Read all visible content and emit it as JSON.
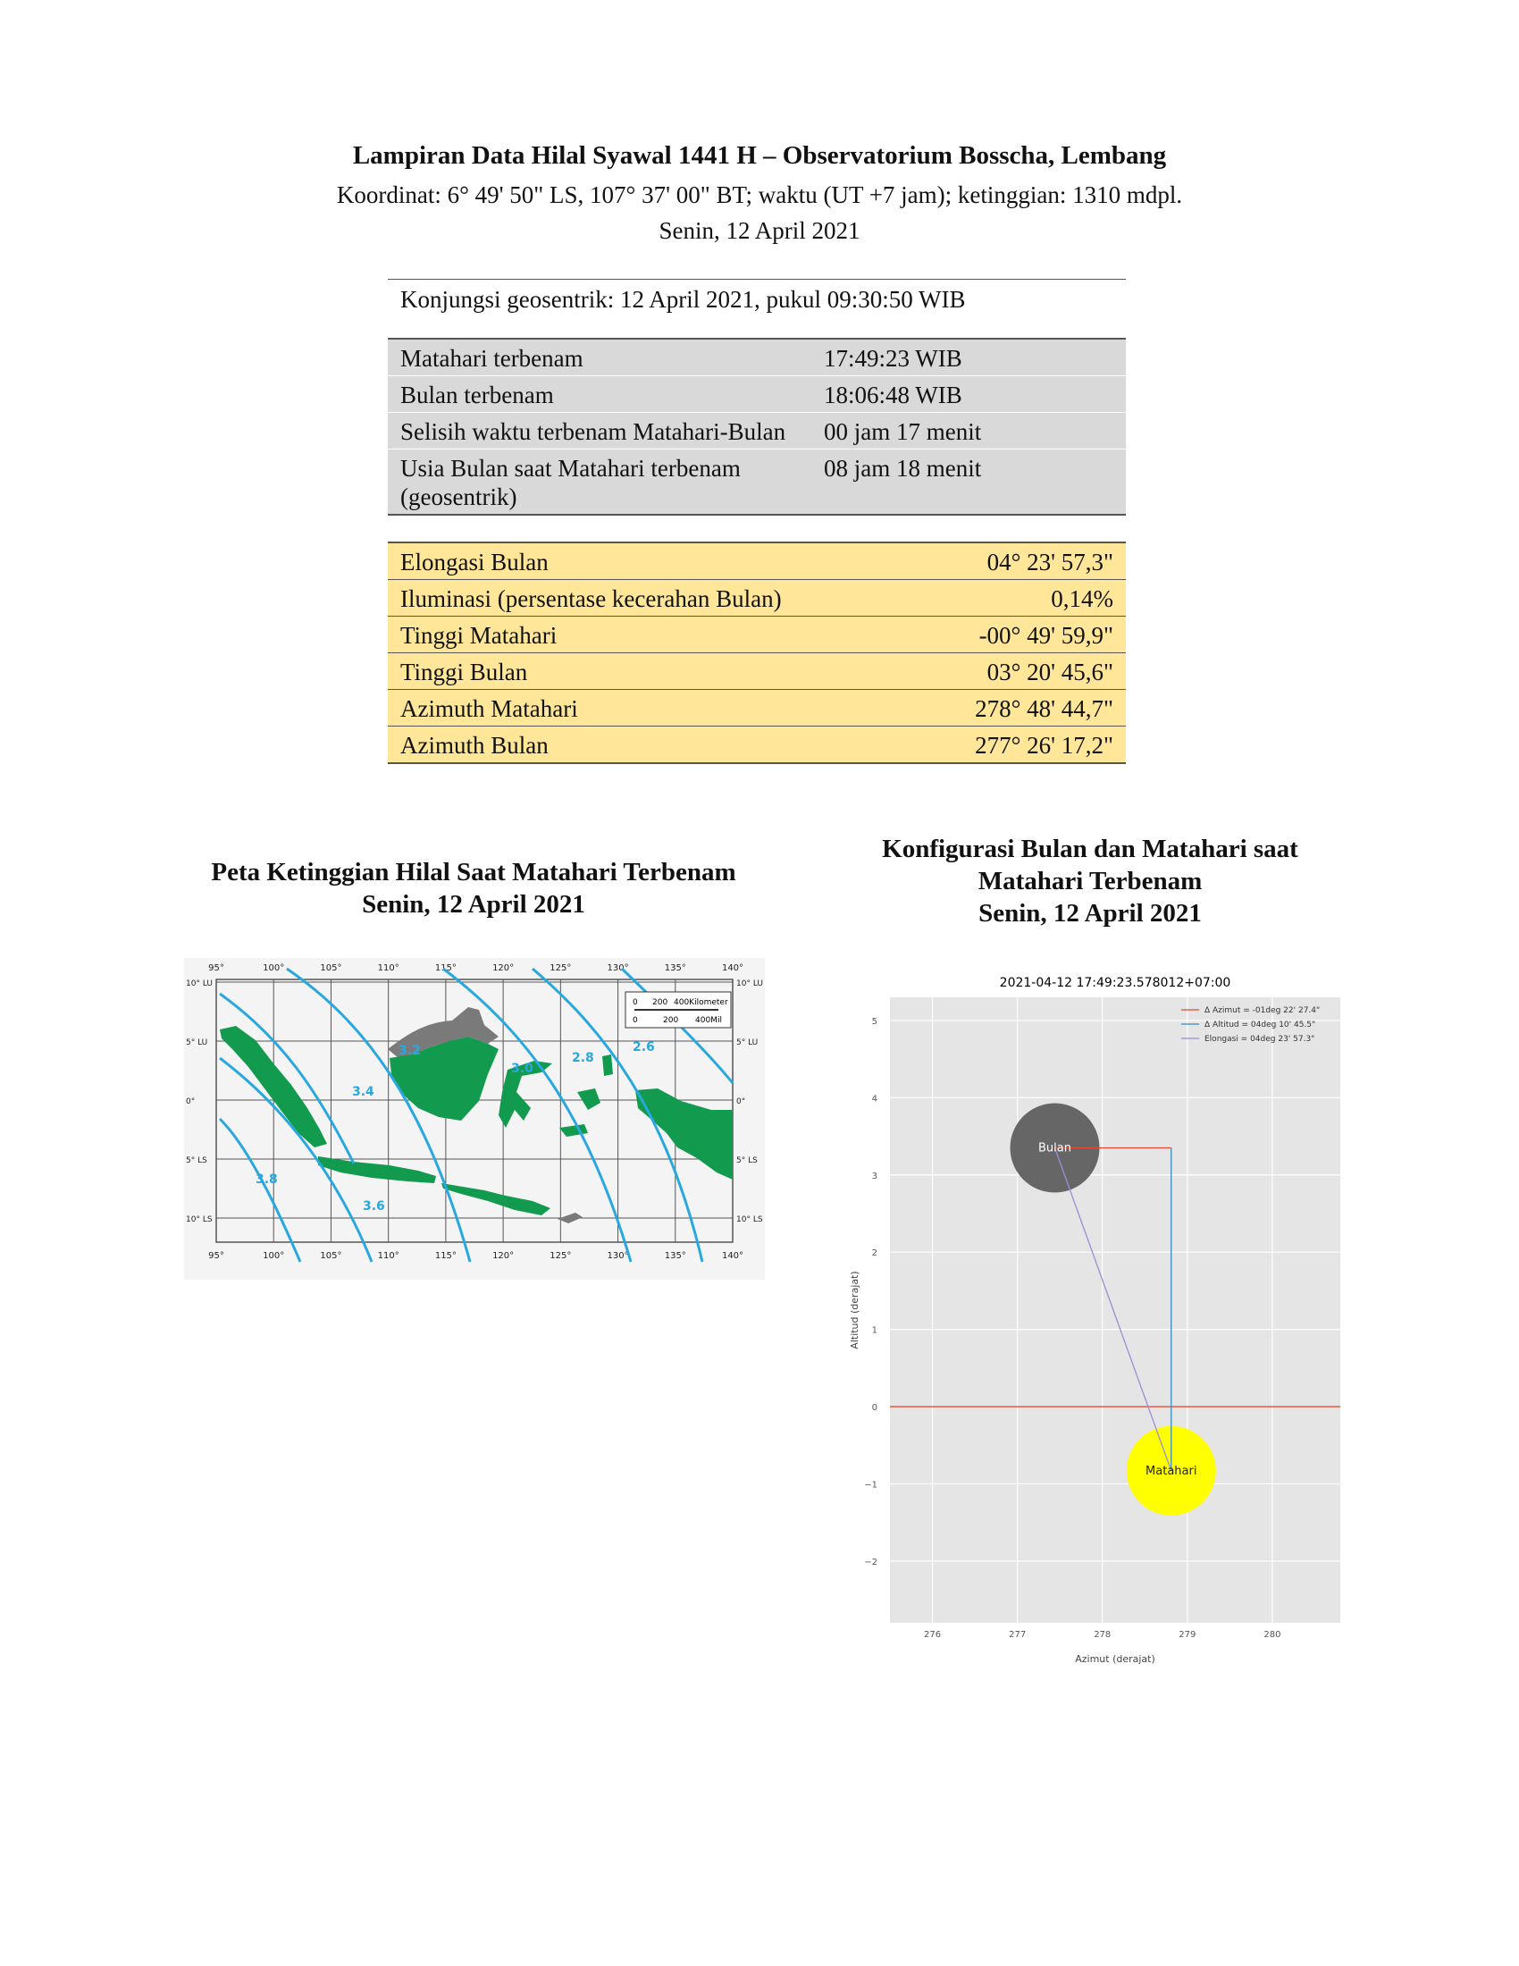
{
  "header": {
    "title": "Lampiran Data Hilal Syawal 1441 H – Observatorium Bosscha, Lembang",
    "coordinates": "Koordinat: 6° 49' 50\" LS, 107° 37' 00\" BT; waktu (UT +7 jam); ketinggian: 1310 mdpl.",
    "date": "Senin, 12 April 2021"
  },
  "conjunction": "Konjungsi geosentrik: 12 April 2021, pukul 09:30:50 WIB",
  "time_table": [
    {
      "label": "Matahari terbenam",
      "value": "17:49:23 WIB"
    },
    {
      "label": "Bulan terbenam",
      "value": "18:06:48 WIB"
    },
    {
      "label": "Selisih waktu terbenam Matahari-Bulan",
      "value": "00 jam 17 menit"
    },
    {
      "label": "Usia Bulan saat Matahari terbenam (geosentrik)",
      "value": "08 jam 18 menit"
    }
  ],
  "position_table": [
    {
      "label": "Elongasi Bulan",
      "value": "04° 23' 57,3\""
    },
    {
      "label": "Iluminasi (persentase kecerahan Bulan)",
      "value": "0,14%"
    },
    {
      "label": "Tinggi Matahari",
      "value": "-00° 49' 59,9\""
    },
    {
      "label": "Tinggi Bulan",
      "value": "03° 20' 45,6\""
    },
    {
      "label": "Azimuth Matahari",
      "value": "278° 48' 44,7\""
    },
    {
      "label": "Azimuth Bulan",
      "value": "277° 26' 17,2\""
    }
  ],
  "map": {
    "caption_line1": "Peta Ketinggian Hilal Saat Matahari Terbenam",
    "caption_line2": "Senin, 12 April 2021",
    "lon_ticks": [
      "95°",
      "100°",
      "105°",
      "110°",
      "115°",
      "120°",
      "125°",
      "130°",
      "135°",
      "140°"
    ],
    "lat_ticks_left": [
      "10° LU",
      "5° LU",
      "0°",
      "5° LS",
      "10° LS"
    ],
    "lat_ticks_right": [
      "10° LU",
      "5° LU",
      "0°",
      "5° LS",
      "10° LS"
    ],
    "contour_labels": [
      "3.2",
      "3.0",
      "2.8",
      "2.6",
      "3.4",
      "3.8",
      "3.6"
    ],
    "scale_labels": [
      "0",
      "200",
      "400Kilometer",
      "0",
      "200",
      "400Mil"
    ],
    "colors": {
      "land": "#129a4e",
      "foreign_land": "#7a7a7a",
      "contour": "#29a8e0",
      "grid": "#555555"
    }
  },
  "config": {
    "caption_line1": "Konfigurasi Bulan dan Matahari saat",
    "caption_line2": "Matahari Terbenam",
    "caption_line3": "Senin, 12 April 2021",
    "chart_title": "2021-04-12 17:49:23.578012+07:00",
    "moon_label": "Bulan",
    "sun_label": "Matahari",
    "colors": {
      "background": "#e5e5e5",
      "moon": "#666666",
      "sun": "#ffff00",
      "azimuth_line": "#e24a33",
      "altitude_line": "#348abd",
      "elongation_line": "#988ed5"
    }
  },
  "chart_data": {
    "type": "scatter",
    "title": "2021-04-12 17:49:23.578012+07:00",
    "xlabel": "Azimut (derajat)",
    "ylabel": "Altitud (derajat)",
    "xlim": [
      275.5,
      280.8
    ],
    "ylim": [
      -2.8,
      5.3
    ],
    "x_ticks": [
      "276",
      "277",
      "278",
      "279",
      "280"
    ],
    "y_ticks": [
      "5",
      "4",
      "3",
      "2",
      "1",
      "0",
      "−1",
      "−2"
    ],
    "grid": true,
    "legend_position": "top-right",
    "legend": [
      "Δ Azimut = -01deg 22' 27.4\"",
      "Δ Altitud = 04deg 10' 45.5\"",
      "Elongasi = 04deg 23' 57.3\""
    ],
    "points": [
      {
        "name": "Bulan",
        "x": 277.44,
        "y": 3.35
      },
      {
        "name": "Matahari",
        "x": 278.81,
        "y": -0.83
      }
    ],
    "horizon_y": 0
  }
}
